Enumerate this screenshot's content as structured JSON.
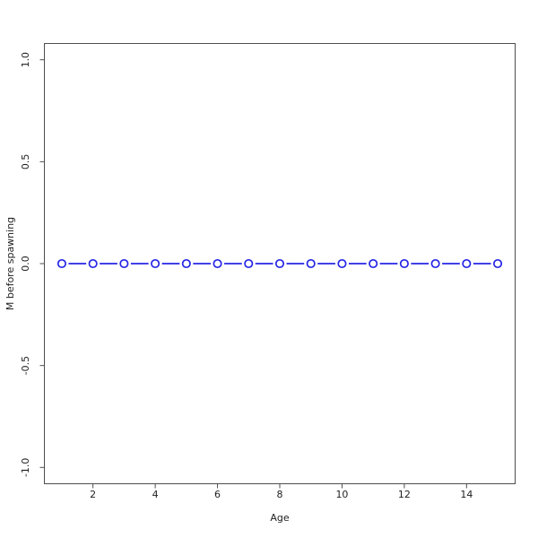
{
  "figure": {
    "background": "#ffffff"
  },
  "chart_data": {
    "type": "line",
    "title": "",
    "xlabel": "Age",
    "ylabel": "M before spawning",
    "x": [
      1,
      2,
      3,
      4,
      5,
      6,
      7,
      8,
      9,
      10,
      11,
      12,
      13,
      14,
      15
    ],
    "series": [
      {
        "name": "M before spawning",
        "values": [
          0,
          0,
          0,
          0,
          0,
          0,
          0,
          0,
          0,
          0,
          0,
          0,
          0,
          0,
          0
        ],
        "color": "#2525e6",
        "marker": "open-circle",
        "line_style": "solid"
      }
    ],
    "xticks": [
      2,
      4,
      6,
      8,
      10,
      12,
      14
    ],
    "xtick_labels": [
      "2",
      "4",
      "6",
      "8",
      "10",
      "12",
      "14"
    ],
    "yticks": [
      -1.0,
      -0.5,
      0.0,
      0.5,
      1.0
    ],
    "ytick_labels": [
      "-1.0",
      "-0.5",
      "0.0",
      "0.5",
      "1.0"
    ],
    "xlim": [
      0.44,
      15.56
    ],
    "ylim": [
      -1.08,
      1.08
    ],
    "grid": false,
    "legend": "none",
    "frame": true,
    "axis_color": "#4d4d4d",
    "text_color": "#1f1f1f"
  }
}
